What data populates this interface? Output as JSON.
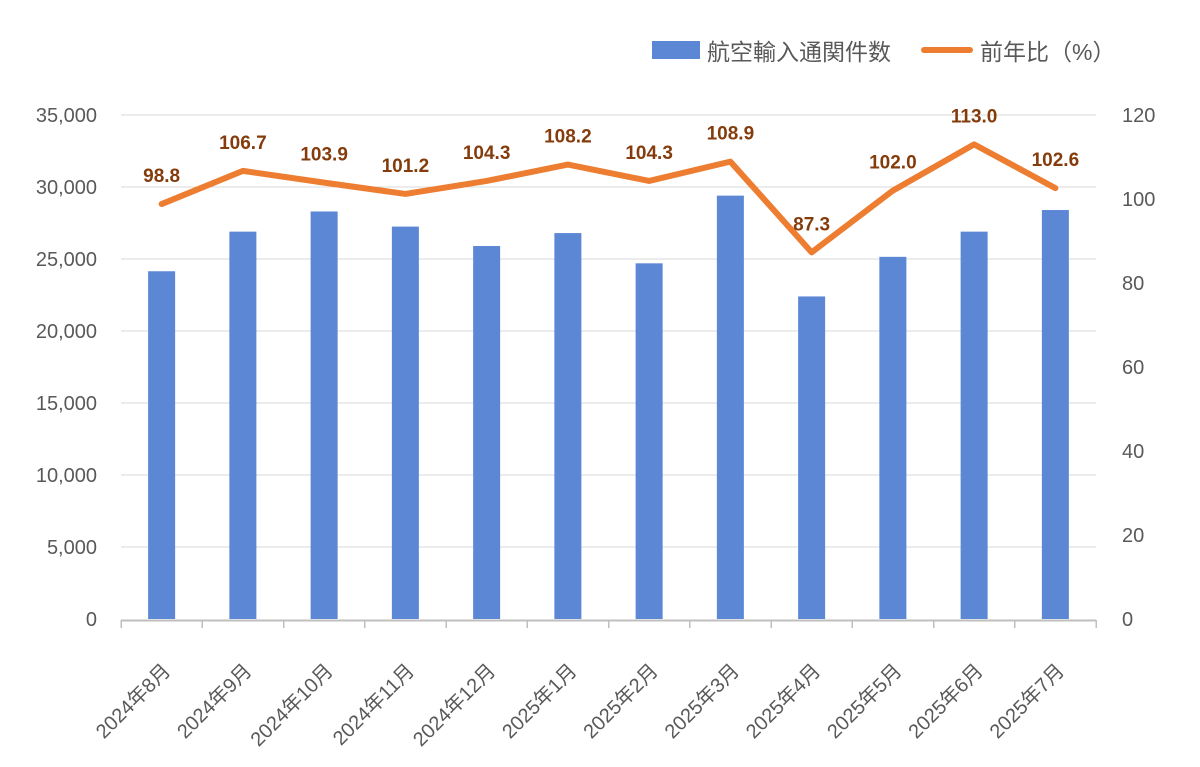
{
  "legend": {
    "bar_label": "航空輸入通関件数",
    "line_label": "前年比（%）"
  },
  "colors": {
    "bar": "#5B87D5",
    "line": "#ED7D31",
    "data_label": "#843C0C",
    "axis_text": "#595959",
    "gridline": "#D9D9D9",
    "axis_line": "#BFBFBF"
  },
  "chart_data": {
    "type": "combo",
    "categories": [
      "2024年8月",
      "2024年9月",
      "2024年10月",
      "2024年11月",
      "2024年12月",
      "2025年1月",
      "2025年2月",
      "2025年3月",
      "2025年4月",
      "2025年5月",
      "2025年6月",
      "2025年7月"
    ],
    "series": [
      {
        "name": "航空輸入通関件数",
        "type": "bar",
        "axis": "left",
        "color": "#5B87D5",
        "values": [
          24150,
          26900,
          28300,
          27250,
          25900,
          26800,
          24700,
          29400,
          22400,
          25150,
          26900,
          28400
        ]
      },
      {
        "name": "前年比（%）",
        "type": "line",
        "axis": "right",
        "color": "#ED7D31",
        "label_color": "#843C0C",
        "values": [
          98.8,
          106.7,
          103.9,
          101.2,
          104.3,
          108.2,
          104.3,
          108.9,
          87.3,
          102.0,
          113.0,
          102.6
        ],
        "data_labels": [
          "98.8",
          "106.7",
          "103.9",
          "101.2",
          "104.3",
          "108.2",
          "104.3",
          "108.9",
          "87.3",
          "102.0",
          "113.0",
          "102.6"
        ]
      }
    ],
    "left_axis": {
      "min": 0,
      "max": 35000,
      "step": 5000,
      "tick_labels": [
        "0",
        "5,000",
        "10,000",
        "15,000",
        "20,000",
        "25,000",
        "30,000",
        "35,000"
      ]
    },
    "right_axis": {
      "min": 0,
      "max": 120,
      "step": 20,
      "tick_labels": [
        "0",
        "20",
        "40",
        "60",
        "80",
        "100",
        "120"
      ]
    },
    "grid": true,
    "legend_position": "top"
  }
}
